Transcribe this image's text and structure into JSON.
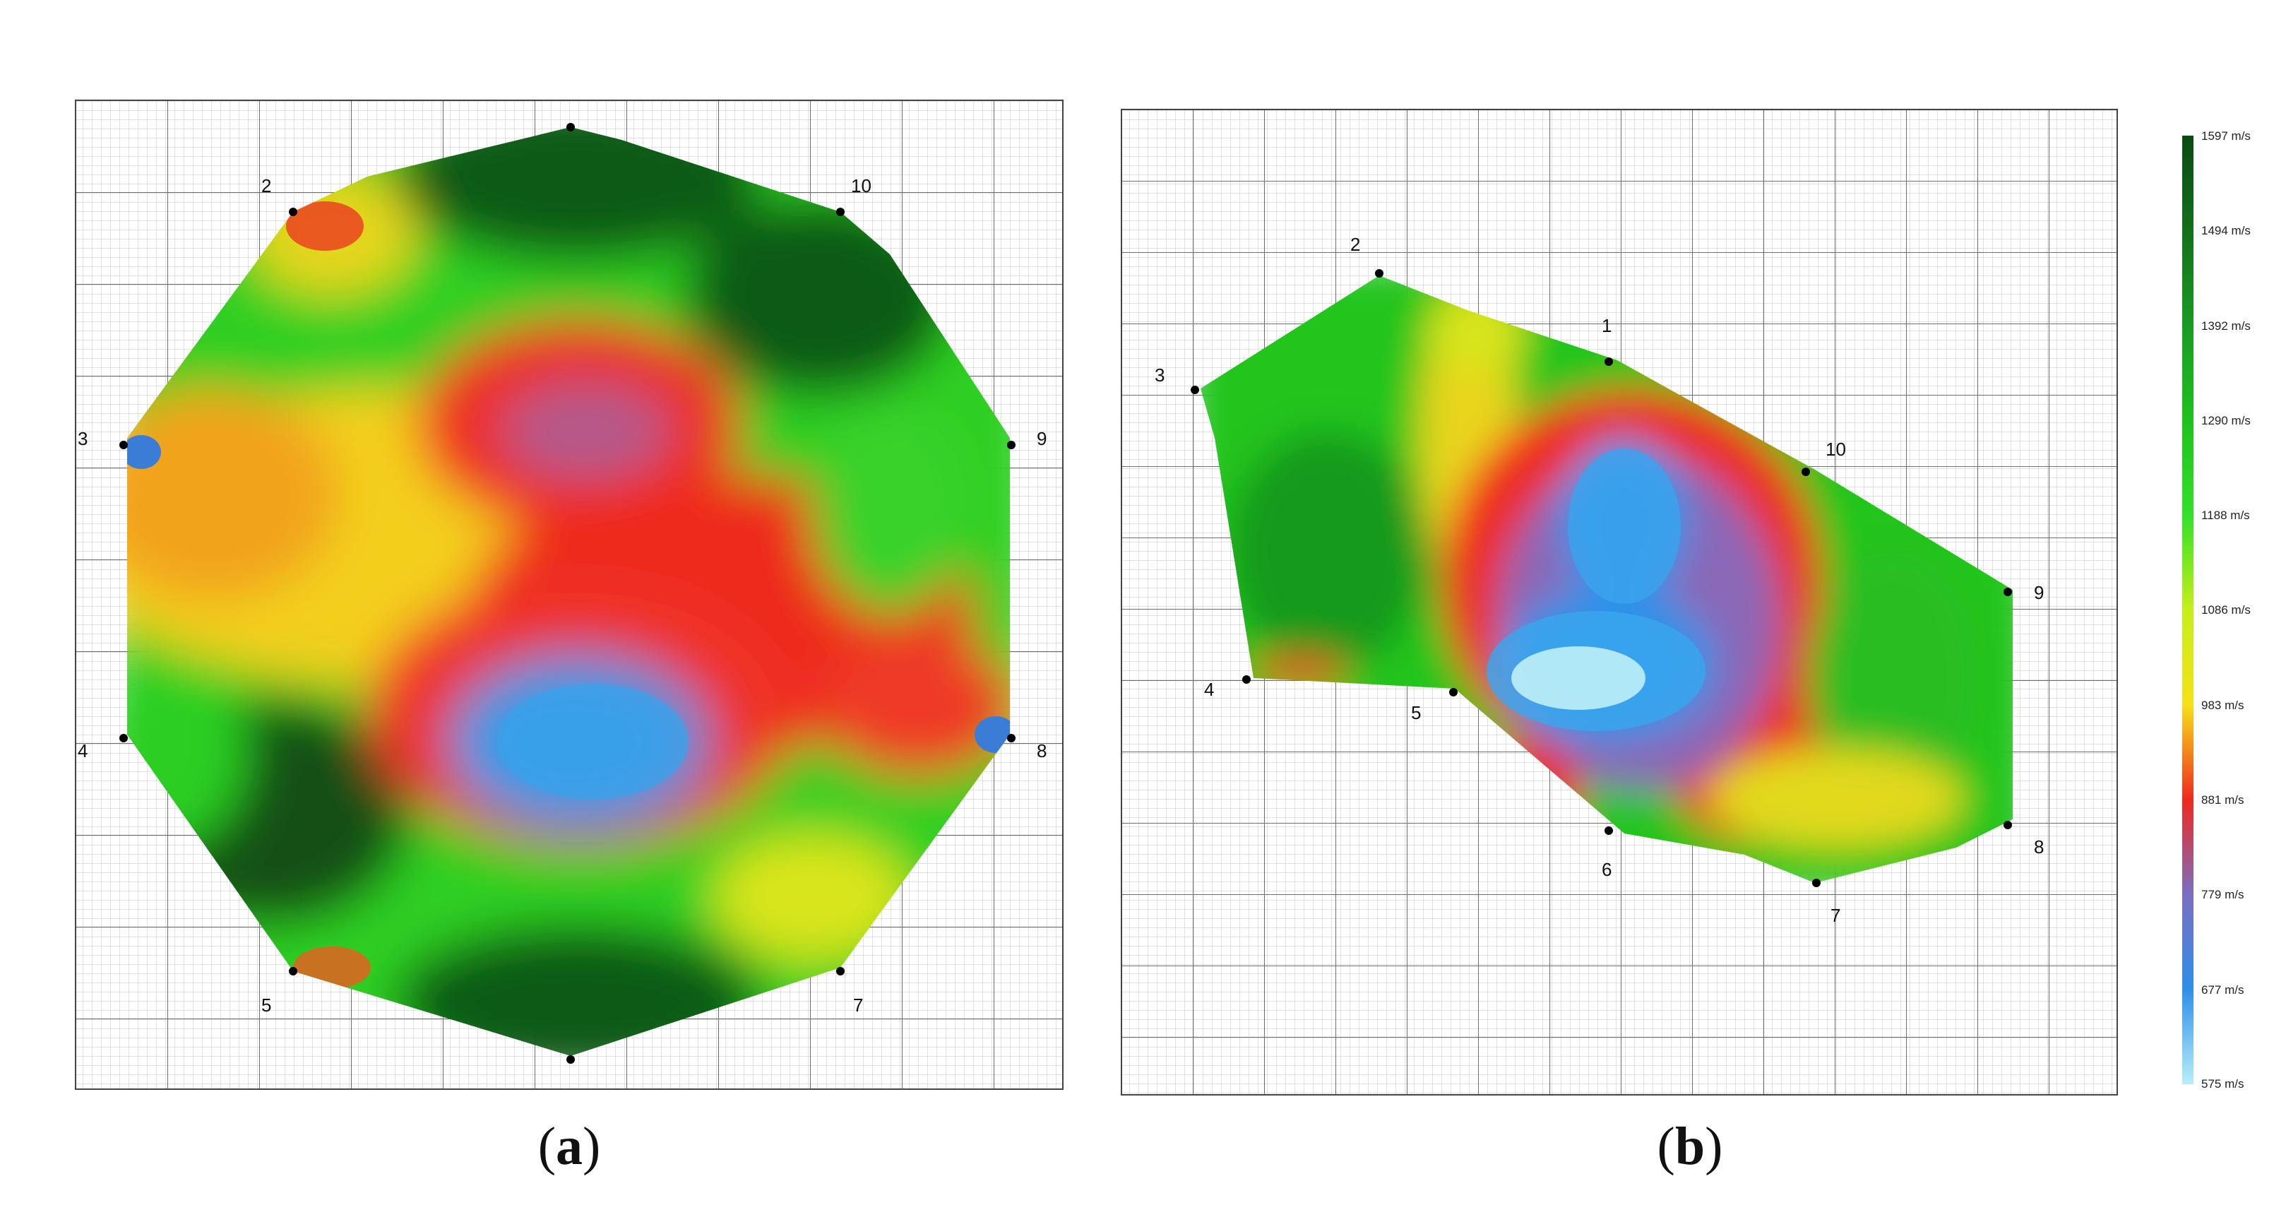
{
  "panels": [
    {
      "id": "a",
      "caption": {
        "open": "(",
        "letter": "a",
        "close": ")"
      },
      "points": [
        {
          "label": ""
        },
        {
          "label": "2"
        },
        {
          "label": "10"
        },
        {
          "label": "3"
        },
        {
          "label": "9"
        },
        {
          "label": "4"
        },
        {
          "label": "8"
        },
        {
          "label": "5"
        },
        {
          "label": "7"
        },
        {
          "label": ""
        }
      ]
    },
    {
      "id": "b",
      "caption": {
        "open": "(",
        "letter": "b",
        "close": ")"
      },
      "points": [
        {
          "label": "2"
        },
        {
          "label": "1"
        },
        {
          "label": "3"
        },
        {
          "label": "10"
        },
        {
          "label": "9"
        },
        {
          "label": "4"
        },
        {
          "label": "5"
        },
        {
          "label": "8"
        },
        {
          "label": "6"
        },
        {
          "label": "7"
        }
      ]
    }
  ],
  "color_scale": {
    "ticks": [
      "1597 m/s",
      "1494 m/s",
      "1392 m/s",
      "1290 m/s",
      "1188 m/s",
      "1086 m/s",
      "983 m/s",
      "881 m/s",
      "779 m/s",
      "677 m/s",
      "575 m/s"
    ],
    "colors": [
      "#0b4a13",
      "#13701c",
      "#1b9a23",
      "#1fc11f",
      "#33e02a",
      "#c6ef1a",
      "#f7e01a",
      "#ee2a1e",
      "#7a6fc0",
      "#2f8fe8",
      "#b8eefa"
    ]
  }
}
